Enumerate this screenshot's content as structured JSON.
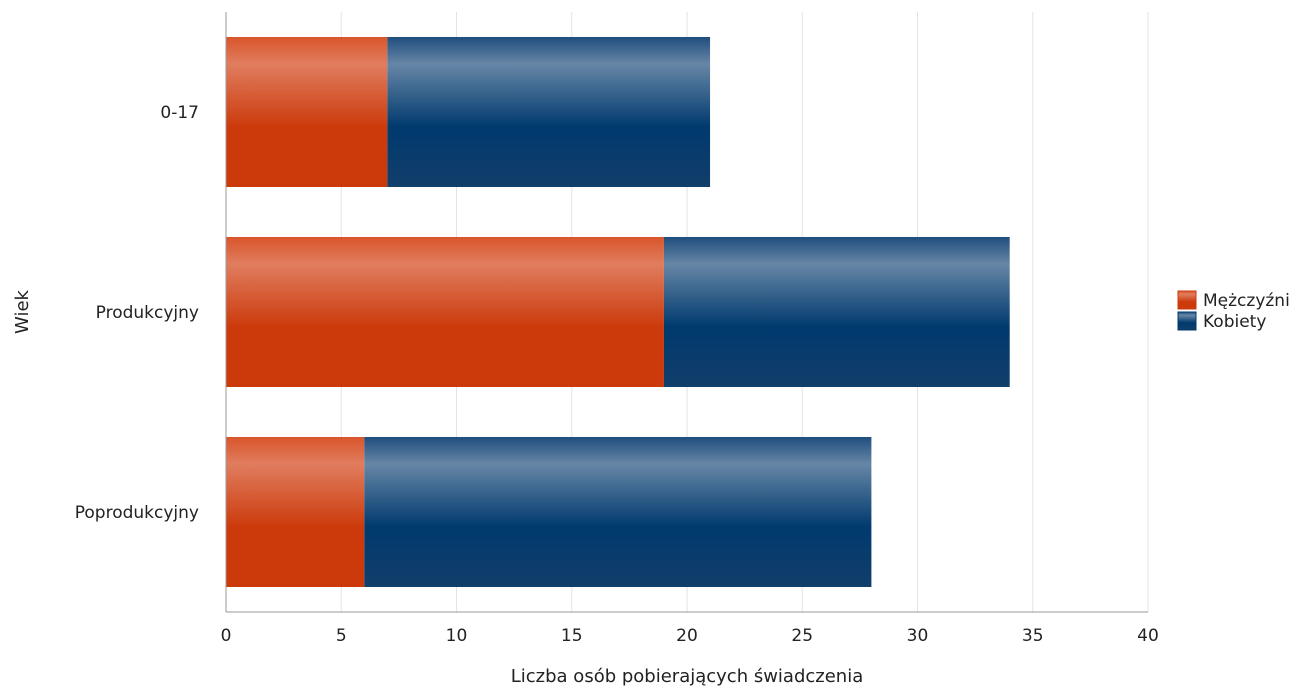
{
  "chart_data": {
    "type": "bar",
    "orientation": "horizontal",
    "stacked": true,
    "categories": [
      "0-17",
      "Produkcyjny",
      "Poprodukcyjny"
    ],
    "series": [
      {
        "name": "Mężczyźni",
        "values": [
          7,
          19,
          6
        ],
        "color": "#cc3a0c"
      },
      {
        "name": "Kobiety",
        "values": [
          14,
          15,
          22
        ],
        "color": "#003a6e"
      }
    ],
    "xlabel": "Liczba osób pobierających świadczenia",
    "ylabel": "Wiek",
    "xlim": [
      0,
      40
    ],
    "xticks": [
      0,
      5,
      10,
      15,
      20,
      25,
      30,
      35,
      40
    ],
    "grid": "vertical",
    "legend_position": "right"
  }
}
